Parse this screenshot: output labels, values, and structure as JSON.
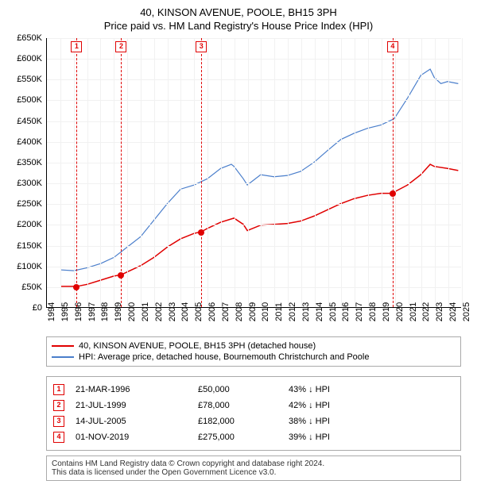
{
  "title_main": "40, KINSON AVENUE, POOLE, BH15 3PH",
  "title_sub": "Price paid vs. HM Land Registry's House Price Index (HPI)",
  "chart": {
    "type": "line",
    "x_min": 1994,
    "x_max": 2025,
    "y_min": 0,
    "y_max": 650000,
    "y_ticks": [
      0,
      50000,
      100000,
      150000,
      200000,
      250000,
      300000,
      350000,
      400000,
      450000,
      500000,
      550000,
      600000,
      650000
    ],
    "y_tick_labels": [
      "£0",
      "£50K",
      "£100K",
      "£150K",
      "£200K",
      "£250K",
      "£300K",
      "£350K",
      "£400K",
      "£450K",
      "£500K",
      "£550K",
      "£600K",
      "£650K"
    ],
    "x_ticks": [
      1994,
      1995,
      1996,
      1997,
      1998,
      1999,
      2000,
      2001,
      2002,
      2003,
      2004,
      2005,
      2006,
      2007,
      2008,
      2009,
      2010,
      2011,
      2012,
      2013,
      2014,
      2015,
      2016,
      2017,
      2018,
      2019,
      2020,
      2021,
      2022,
      2023,
      2024,
      2025
    ],
    "grid_color": "#f1f1f1",
    "background_color": "#ffffff",
    "series": [
      {
        "name": "40, KINSON AVENUE, POOLE, BH15 3PH (detached house)",
        "color": "#e00000",
        "line_width": 1.5,
        "data": [
          [
            1995.0,
            50000
          ],
          [
            1996.22,
            50000
          ],
          [
            1997.0,
            55000
          ],
          [
            1998.0,
            65000
          ],
          [
            1999.0,
            75000
          ],
          [
            1999.55,
            78000
          ],
          [
            2000.0,
            85000
          ],
          [
            2001.0,
            100000
          ],
          [
            2002.0,
            120000
          ],
          [
            2003.0,
            145000
          ],
          [
            2004.0,
            165000
          ],
          [
            2005.0,
            178000
          ],
          [
            2005.54,
            182000
          ],
          [
            2006.0,
            190000
          ],
          [
            2007.0,
            205000
          ],
          [
            2008.0,
            215000
          ],
          [
            2008.7,
            200000
          ],
          [
            2009.0,
            185000
          ],
          [
            2010.0,
            198000
          ],
          [
            2011.0,
            200000
          ],
          [
            2012.0,
            202000
          ],
          [
            2013.0,
            208000
          ],
          [
            2014.0,
            220000
          ],
          [
            2015.0,
            235000
          ],
          [
            2016.0,
            250000
          ],
          [
            2017.0,
            262000
          ],
          [
            2018.0,
            270000
          ],
          [
            2019.0,
            275000
          ],
          [
            2019.83,
            275000
          ],
          [
            2020.0,
            278000
          ],
          [
            2021.0,
            295000
          ],
          [
            2022.0,
            320000
          ],
          [
            2022.7,
            345000
          ],
          [
            2023.0,
            340000
          ],
          [
            2024.0,
            335000
          ],
          [
            2024.8,
            330000
          ]
        ]
      },
      {
        "name": "HPI: Average price, detached house, Bournemouth Christchurch and Poole",
        "color": "#4a7ecb",
        "line_width": 1.2,
        "data": [
          [
            1995.0,
            90000
          ],
          [
            1996.0,
            88000
          ],
          [
            1997.0,
            95000
          ],
          [
            1998.0,
            105000
          ],
          [
            1999.0,
            120000
          ],
          [
            2000.0,
            145000
          ],
          [
            2001.0,
            170000
          ],
          [
            2002.0,
            210000
          ],
          [
            2003.0,
            250000
          ],
          [
            2004.0,
            285000
          ],
          [
            2005.0,
            295000
          ],
          [
            2006.0,
            310000
          ],
          [
            2007.0,
            335000
          ],
          [
            2007.8,
            345000
          ],
          [
            2008.0,
            340000
          ],
          [
            2008.7,
            310000
          ],
          [
            2009.0,
            295000
          ],
          [
            2010.0,
            320000
          ],
          [
            2011.0,
            315000
          ],
          [
            2012.0,
            318000
          ],
          [
            2013.0,
            328000
          ],
          [
            2014.0,
            350000
          ],
          [
            2015.0,
            378000
          ],
          [
            2016.0,
            405000
          ],
          [
            2017.0,
            420000
          ],
          [
            2018.0,
            432000
          ],
          [
            2019.0,
            440000
          ],
          [
            2020.0,
            455000
          ],
          [
            2021.0,
            505000
          ],
          [
            2022.0,
            560000
          ],
          [
            2022.7,
            575000
          ],
          [
            2023.0,
            555000
          ],
          [
            2023.5,
            540000
          ],
          [
            2024.0,
            545000
          ],
          [
            2024.8,
            540000
          ]
        ]
      }
    ],
    "markers": [
      {
        "n": "1",
        "year": 1996.22,
        "price": 50000,
        "color": "#e00000"
      },
      {
        "n": "2",
        "year": 1999.55,
        "price": 78000,
        "color": "#e00000"
      },
      {
        "n": "3",
        "year": 2005.54,
        "price": 182000,
        "color": "#e00000"
      },
      {
        "n": "4",
        "year": 2019.83,
        "price": 275000,
        "color": "#e00000"
      }
    ]
  },
  "legend": [
    {
      "color": "#e00000",
      "label": "40, KINSON AVENUE, POOLE, BH15 3PH (detached house)"
    },
    {
      "color": "#4a7ecb",
      "label": "HPI: Average price, detached house, Bournemouth Christchurch and Poole"
    }
  ],
  "sales": [
    {
      "n": "1",
      "date": "21-MAR-1996",
      "price": "£50,000",
      "diff": "43% ↓ HPI"
    },
    {
      "n": "2",
      "date": "21-JUL-1999",
      "price": "£78,000",
      "diff": "42% ↓ HPI"
    },
    {
      "n": "3",
      "date": "14-JUL-2005",
      "price": "£182,000",
      "diff": "38% ↓ HPI"
    },
    {
      "n": "4",
      "date": "01-NOV-2019",
      "price": "£275,000",
      "diff": "39% ↓ HPI"
    }
  ],
  "sale_box_color": "#e00000",
  "footer_line1": "Contains HM Land Registry data © Crown copyright and database right 2024.",
  "footer_line2": "This data is licensed under the Open Government Licence v3.0."
}
